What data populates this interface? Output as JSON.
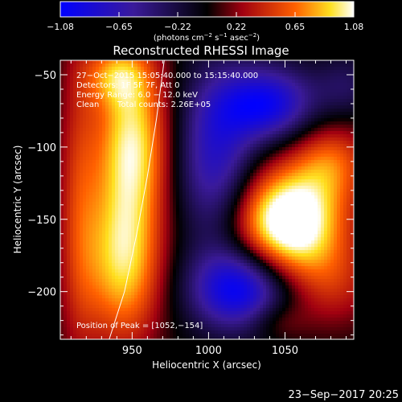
{
  "chart_data": {
    "type": "heatmap",
    "title": "Reconstructed RHESSI Image",
    "xlabel": "Heliocentric X (arcsec)",
    "ylabel": "Heliocentric Y (arcsec)",
    "xlim": [
      903,
      1095
    ],
    "ylim": [
      -233,
      -40
    ],
    "x_ticks": [
      950,
      1000,
      1050
    ],
    "y_ticks": [
      -200,
      -150,
      -100,
      -50
    ],
    "colorbar": {
      "ticks": [
        "−1.08",
        "−0.65",
        "−0.22",
        "0.22",
        "0.65",
        "1.08"
      ],
      "range": [
        -1.08,
        1.08
      ],
      "label_parts": [
        "(photons cm",
        "−2",
        " s",
        "−1",
        " asec",
        "−2",
        ")"
      ]
    },
    "annotations": [
      "27−Oct−2015 15:05:40.000 to 15:15:40.000",
      "Detectors: 1F 5F 7F, Att 0",
      "Energy Range: 6.0 − 12.0 keV",
      "Clean",
      "Total counts: 2.26E+05",
      "Position of Peak = [1052,−154]"
    ],
    "peak": {
      "x": 1052,
      "y": -154
    },
    "components": [
      {
        "x": 1052,
        "y": -152,
        "sx": 25,
        "sy": 26,
        "amp": 1.35
      },
      {
        "x": 1080,
        "y": -110,
        "sx": 18,
        "sy": 20,
        "amp": 0.55
      },
      {
        "x": 1082,
        "y": -195,
        "sx": 20,
        "sy": 22,
        "amp": 0.35
      },
      {
        "x": 1044,
        "y": -220,
        "sx": 14,
        "sy": 10,
        "amp": 0.25
      },
      {
        "x": 950,
        "y": -95,
        "sx": 17,
        "sy": 40,
        "amp": 0.95
      },
      {
        "x": 944,
        "y": -180,
        "sx": 18,
        "sy": 40,
        "amp": 0.9
      },
      {
        "x": 915,
        "y": -140,
        "sx": 10,
        "sy": 80,
        "amp": 0.4
      },
      {
        "x": 940,
        "y": -50,
        "sx": 15,
        "sy": 15,
        "amp": 0.55
      },
      {
        "x": 1005,
        "y": -108,
        "sx": 18,
        "sy": 42,
        "amp": -0.75
      },
      {
        "x": 1020,
        "y": -198,
        "sx": 22,
        "sy": 20,
        "amp": -1.05
      },
      {
        "x": 1038,
        "y": -70,
        "sx": 22,
        "sy": 18,
        "amp": -0.95
      },
      {
        "x": 1090,
        "y": -58,
        "sx": 14,
        "sy": 16,
        "amp": -0.3
      }
    ],
    "limb_curve": [
      [
        935,
        -233
      ],
      [
        945,
        -200
      ],
      [
        953,
        -160
      ],
      [
        960,
        -120
      ],
      [
        966,
        -80
      ],
      [
        971,
        -40
      ]
    ]
  },
  "footer": {
    "datetime": "23−Sep−2017 20:25"
  }
}
